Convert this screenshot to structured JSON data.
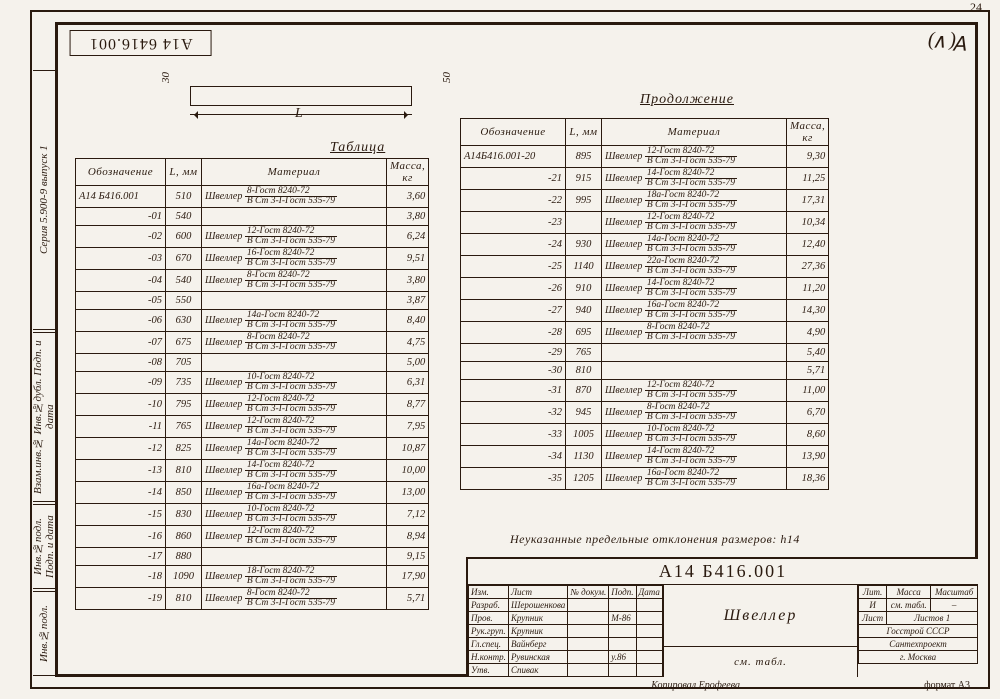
{
  "page_number": "24",
  "doc_number": "А14 6416.001",
  "top_mark": "∀(∨)",
  "left_labels": {
    "lv1": "Серия 5.900-9 выпуск 1",
    "lv2": "Взам.инв.№ Инв.№дубл. Подп. и дата",
    "lv3": "Инв.№подл. Подп. и дата",
    "lv4": "Инв.№подл."
  },
  "sketch": {
    "L_label": "L",
    "left_dim": "30",
    "right_dim": "50",
    "title": "Таблица",
    "cont": "Продолжение"
  },
  "headers": {
    "oboz": "Обозначение",
    "L": "L, мм",
    "mat": "Материал",
    "mass": "Масса, кг"
  },
  "mat_prefix": "Швеллер",
  "frac_den_default": "В Ст 3-I-Гост 535-79",
  "table1": [
    {
      "o": "А14 Б416.001",
      "l": "510",
      "num": "8-Гост 8240-72",
      "m": "3,60"
    },
    {
      "o": "-01",
      "l": "540",
      "num": "",
      "m": "3,80"
    },
    {
      "o": "-02",
      "l": "600",
      "num": "12-Гост 8240-72",
      "m": "6,24"
    },
    {
      "o": "-03",
      "l": "670",
      "num": "16-Гост 8240-72",
      "m": "9,51"
    },
    {
      "o": "-04",
      "l": "540",
      "num": "8-Гост 8240-72",
      "m": "3,80"
    },
    {
      "o": "-05",
      "l": "550",
      "num": "",
      "m": "3,87"
    },
    {
      "o": "-06",
      "l": "630",
      "num": "14а-Гост 8240-72",
      "m": "8,40"
    },
    {
      "o": "-07",
      "l": "675",
      "num": "8-Гост 8240-72",
      "m": "4,75"
    },
    {
      "o": "-08",
      "l": "705",
      "num": "",
      "m": "5,00"
    },
    {
      "o": "-09",
      "l": "735",
      "num": "10-Гост 8240-72",
      "m": "6,31"
    },
    {
      "o": "-10",
      "l": "795",
      "num": "12-Гост 8240-72",
      "m": "8,77"
    },
    {
      "o": "-11",
      "l": "765",
      "num": "12-Гост 8240-72",
      "m": "7,95"
    },
    {
      "o": "-12",
      "l": "825",
      "num": "14а-Гост 8240-72",
      "m": "10,87"
    },
    {
      "o": "-13",
      "l": "810",
      "num": "14-Гост 8240-72",
      "m": "10,00"
    },
    {
      "o": "-14",
      "l": "850",
      "num": "16а-Гост 8240-72",
      "m": "13,00"
    },
    {
      "o": "-15",
      "l": "830",
      "num": "10-Гост 8240-72",
      "m": "7,12"
    },
    {
      "o": "-16",
      "l": "860",
      "num": "12-Гост 8240-72",
      "m": "8,94"
    },
    {
      "o": "-17",
      "l": "880",
      "num": "",
      "m": "9,15"
    },
    {
      "o": "-18",
      "l": "1090",
      "num": "18-Гост 8240-72",
      "m": "17,90"
    },
    {
      "o": "-19",
      "l": "810",
      "num": "8-Гост 8240-72",
      "m": "5,71"
    }
  ],
  "table2": [
    {
      "o": "А14Б416.001-20",
      "l": "895",
      "num": "12-Гост 8240-72",
      "m": "9,30"
    },
    {
      "o": "-21",
      "l": "915",
      "num": "14-Гост 8240-72",
      "m": "11,25"
    },
    {
      "o": "-22",
      "l": "995",
      "num": "18а-Гост 8240-72",
      "m": "17,31"
    },
    {
      "o": "-23",
      "l": "",
      "num": "12-Гост 8240-72",
      "m": "10,34"
    },
    {
      "o": "-24",
      "l": "930",
      "num": "14а-Гост 8240-72",
      "m": "12,40"
    },
    {
      "o": "-25",
      "l": "1140",
      "num": "22а-Гост 8240-72",
      "m": "27,36"
    },
    {
      "o": "-26",
      "l": "910",
      "num": "14-Гост 8240-72",
      "m": "11,20"
    },
    {
      "o": "-27",
      "l": "940",
      "num": "16а-Гост 8240-72",
      "m": "14,30"
    },
    {
      "o": "-28",
      "l": "695",
      "num": "8-Гост 8240-72",
      "m": "4,90"
    },
    {
      "o": "-29",
      "l": "765",
      "num": "",
      "m": "5,40"
    },
    {
      "o": "-30",
      "l": "810",
      "num": "",
      "m": "5,71"
    },
    {
      "o": "-31",
      "l": "870",
      "num": "12-Гост 8240-72",
      "m": "11,00"
    },
    {
      "o": "-32",
      "l": "945",
      "num": "8-Гост 8240-72",
      "m": "6,70"
    },
    {
      "o": "-33",
      "l": "1005",
      "num": "10-Гост 8240-72",
      "m": "8,60"
    },
    {
      "o": "-34",
      "l": "1130",
      "num": "14-Гост 8240-72",
      "m": "13,90"
    },
    {
      "o": "-35",
      "l": "1205",
      "num": "16а-Гост 8240-72",
      "m": "18,36"
    }
  ],
  "tol_note": "Неуказанные предельные отклонения размеров: h14",
  "titleblock": {
    "docnum": "А14 Б416.001",
    "name": "Швеллер",
    "see": "см. табл.",
    "left_rows": [
      [
        "Изм.",
        "Лист",
        "№ докум.",
        "Подп.",
        "Дата"
      ],
      [
        "Разраб.",
        "Шерошенкова",
        "",
        "",
        ""
      ],
      [
        "Пров.",
        "Крупник",
        "",
        "М-86",
        ""
      ],
      [
        "Рук.груп.",
        "Крупник",
        "",
        "",
        ""
      ],
      [
        "Гл.спец.",
        "Вайнберг",
        "",
        "",
        ""
      ],
      [
        "Н.контр.",
        "Рувинская",
        "",
        "у.86",
        ""
      ],
      [
        "Утв.",
        "Спивак",
        "",
        "",
        ""
      ]
    ],
    "right": {
      "headers": [
        "Лит.",
        "Масса",
        "Масштаб"
      ],
      "row1": [
        "И",
        "см. табл.",
        "–"
      ],
      "sheet_label": "Лист",
      "sheets_label": "Листов 1",
      "org1": "Госстрой СССР",
      "org2": "Сантехпроект",
      "org3": "г. Москва"
    },
    "copy": "Копировал Ерофеева",
    "format": "формат А3"
  }
}
